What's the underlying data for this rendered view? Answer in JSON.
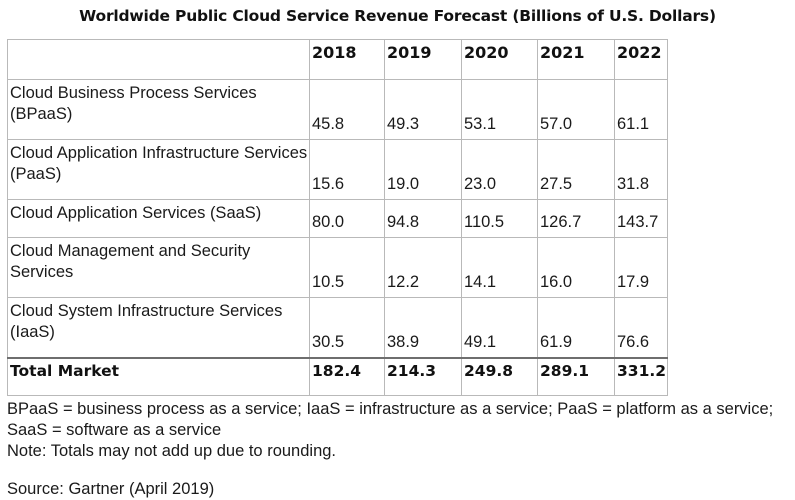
{
  "chart_data": {
    "type": "table",
    "title": "Worldwide Public Cloud Service Revenue Forecast (Billions of U.S. Dollars)",
    "columns": [
      "",
      "2018",
      "2019",
      "2020",
      "2021",
      "2022"
    ],
    "rows": [
      {
        "label": "Cloud Business Process Services (BPaaS)",
        "values": [
          "45.8",
          "49.3",
          "53.1",
          "57.0",
          "61.1"
        ]
      },
      {
        "label": "Cloud Application Infrastructure Services (PaaS)",
        "values": [
          "15.6",
          "19.0",
          "23.0",
          "27.5",
          "31.8"
        ]
      },
      {
        "label": "Cloud Application Services (SaaS)",
        "values": [
          "80.0",
          "94.8",
          "110.5",
          "126.7",
          "143.7"
        ]
      },
      {
        "label": "Cloud Management and Security Services",
        "values": [
          "10.5",
          "12.2",
          "14.1",
          "16.0",
          "17.9"
        ]
      },
      {
        "label": "Cloud System Infrastructure Services (IaaS)",
        "values": [
          "30.5",
          "38.9",
          "49.1",
          "61.9",
          "76.6"
        ]
      }
    ],
    "total": {
      "label": "Total Market",
      "values": [
        "182.4",
        "214.3",
        "249.8",
        "289.1",
        "331.2"
      ]
    }
  },
  "notes": {
    "abbreviations": "BPaaS = business process as a service; IaaS = infrastructure as a service; PaaS = platform as a service; SaaS = software as a service",
    "rounding": "Note: Totals may not add up due to rounding.",
    "source": "Source: Gartner (April 2019)"
  }
}
